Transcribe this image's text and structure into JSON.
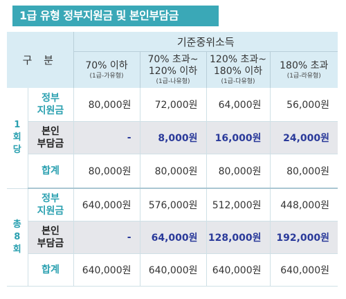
{
  "title": "1급 유형 정부지원금 및 본인부담금",
  "header": {
    "gubun": "구 분",
    "main": "기준중위소득",
    "columns": [
      {
        "label1": "70% 이하",
        "label2": "",
        "sub": "(1급-가유형)"
      },
      {
        "label1": "70% 초과~",
        "label2": "120% 이하",
        "sub": "(1급-나유형)"
      },
      {
        "label1": "120% 초과~",
        "label2": "180% 이하",
        "sub": "(1급-다유형)"
      },
      {
        "label1": "180% 초과",
        "label2": "",
        "sub": "(1급-라유형)"
      }
    ]
  },
  "groups": [
    {
      "label": [
        "1",
        "회",
        "당"
      ],
      "rows": [
        {
          "label": [
            "정부",
            "지원금"
          ],
          "values": [
            "80,000원",
            "72,000원",
            "64,000원",
            "56,000원"
          ]
        },
        {
          "label": [
            "본인",
            "부담금"
          ],
          "values": [
            "-",
            "8,000원",
            "16,000원",
            "24,000원"
          ]
        },
        {
          "label": [
            "합계"
          ],
          "values": [
            "80,000원",
            "80,000원",
            "80,000원",
            "80,000원"
          ]
        }
      ]
    },
    {
      "label": [
        "총",
        "8",
        "회"
      ],
      "rows": [
        {
          "label": [
            "정부",
            "지원금"
          ],
          "values": [
            "640,000원",
            "576,000원",
            "512,000원",
            "448,000원"
          ]
        },
        {
          "label": [
            "본인",
            "부담금"
          ],
          "values": [
            "-",
            "64,000원",
            "128,000원",
            "192,000원"
          ]
        },
        {
          "label": [
            "합계"
          ],
          "values": [
            "640,000원",
            "640,000원",
            "640,000원",
            "640,000원"
          ]
        }
      ]
    }
  ]
}
